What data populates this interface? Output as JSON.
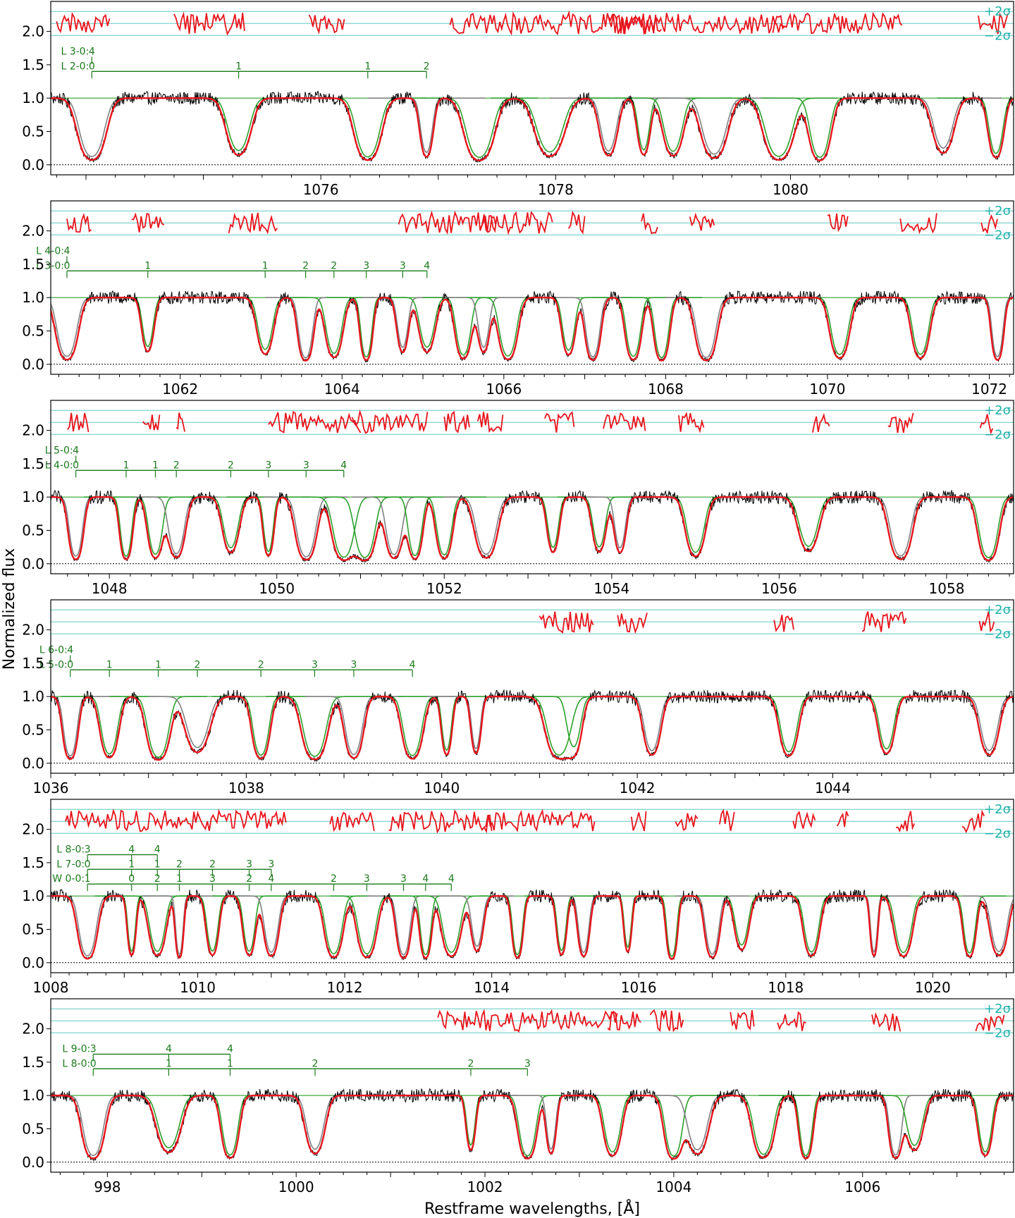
{
  "figure": {
    "ylabel": "Normalized flux",
    "xlabel": "Restframe wavelengths, [Å]",
    "sigma_plus": "+2σ",
    "sigma_minus": "−2σ"
  },
  "colors": {
    "data": "#000000",
    "model": "#e8141c",
    "residuals": "#e8141c",
    "sigma_lines": "#5fc9c4",
    "component_green": "#2ca02c",
    "component_gray": "#808080",
    "line_marker": "#1a7a1a"
  },
  "chart_data": [
    {
      "type": "line",
      "panel": 1,
      "xlim": [
        1073.7,
        1081.9
      ],
      "ylim": [
        -0.15,
        2.45
      ],
      "x_ticks": [
        1076,
        1078,
        1080
      ],
      "y_ticks": [
        0.0,
        0.5,
        1.0,
        1.5,
        2.0
      ],
      "absorption_lines": [
        1074.05,
        1075.3,
        1076.4,
        1076.9,
        1077.35,
        1077.95,
        1078.45,
        1078.75,
        1079.0,
        1079.35,
        1079.9,
        1080.25,
        1081.3,
        1081.75
      ],
      "residual_segments": [
        [
          1073.75,
          1074.2
        ],
        [
          1074.75,
          1075.35
        ],
        [
          1075.9,
          1076.2
        ],
        [
          1077.1,
          1077.9
        ],
        [
          1077.9,
          1078.9
        ],
        [
          1078.45,
          1079.95
        ],
        [
          1079.85,
          1080.95
        ],
        [
          1081.6,
          1081.85
        ]
      ],
      "line_series": [
        {
          "label": "L 3-0:",
          "markers": [
            "4"
          ]
        },
        {
          "label": "L 2-0:",
          "markers": [
            "0",
            "1",
            "1",
            "2"
          ]
        }
      ]
    },
    {
      "type": "line",
      "panel": 2,
      "xlim": [
        1060.4,
        1072.3
      ],
      "ylim": [
        -0.15,
        2.45
      ],
      "x_ticks": [
        1062,
        1064,
        1066,
        1068,
        1070,
        1072
      ],
      "y_ticks": [
        0.0,
        0.5,
        1.0,
        1.5,
        2.0
      ],
      "absorption_lines": [
        1060.6,
        1061.6,
        1063.05,
        1063.55,
        1063.9,
        1064.3,
        1064.75,
        1065.05,
        1065.5,
        1065.75,
        1066.05,
        1066.8,
        1067.1,
        1067.6,
        1067.95,
        1068.5,
        1070.15,
        1071.15,
        1072.1
      ],
      "residual_segments": [
        [
          1060.6,
          1060.9
        ],
        [
          1061.4,
          1061.8
        ],
        [
          1062.6,
          1063.2
        ],
        [
          1064.7,
          1065.9
        ],
        [
          1065.7,
          1066.6
        ],
        [
          1066.8,
          1067.0
        ],
        [
          1067.7,
          1067.9
        ],
        [
          1068.3,
          1068.6
        ],
        [
          1070.0,
          1070.25
        ],
        [
          1070.9,
          1071.35
        ],
        [
          1071.9,
          1072.1
        ]
      ],
      "line_series": [
        {
          "label": "L 4-0:",
          "markers": [
            "4"
          ]
        },
        {
          "label": "L 3-0:",
          "markers": [
            "0",
            "1",
            "1",
            "2",
            "2",
            "3",
            "3",
            "4"
          ]
        }
      ]
    },
    {
      "type": "line",
      "panel": 3,
      "xlim": [
        1047.3,
        1058.8
      ],
      "ylim": [
        -0.15,
        2.45
      ],
      "x_ticks": [
        1048,
        1050,
        1052,
        1054,
        1056,
        1058
      ],
      "y_ticks": [
        0.0,
        0.5,
        1.0,
        1.5,
        2.0
      ],
      "absorption_lines": [
        1047.6,
        1048.2,
        1048.55,
        1048.8,
        1049.45,
        1049.9,
        1050.35,
        1050.8,
        1051.05,
        1051.4,
        1051.65,
        1052.0,
        1052.5,
        1053.3,
        1053.85,
        1054.1,
        1055.0,
        1056.35,
        1057.45,
        1058.5
      ],
      "residual_segments": [
        [
          1047.5,
          1047.75
        ],
        [
          1048.4,
          1048.6
        ],
        [
          1048.8,
          1048.9
        ],
        [
          1049.9,
          1051.0
        ],
        [
          1050.9,
          1051.8
        ],
        [
          1052.0,
          1052.3
        ],
        [
          1052.4,
          1052.7
        ],
        [
          1053.2,
          1053.55
        ],
        [
          1053.9,
          1054.4
        ],
        [
          1054.8,
          1055.1
        ],
        [
          1056.4,
          1056.6
        ],
        [
          1057.3,
          1057.6
        ],
        [
          1058.4,
          1058.55
        ]
      ],
      "line_series": [
        {
          "label": "L 5-0:",
          "markers": [
            "4"
          ]
        },
        {
          "label": "L 4-0:",
          "markers": [
            "0",
            "1",
            "1",
            "2",
            "2",
            "3",
            "3",
            "4"
          ]
        }
      ]
    },
    {
      "type": "line",
      "panel": 4,
      "xlim": [
        1036.0,
        1045.85
      ],
      "ylim": [
        -0.15,
        2.45
      ],
      "x_ticks": [
        1036,
        1038,
        1040,
        1042,
        1044
      ],
      "y_ticks": [
        0.0,
        0.5,
        1.0,
        1.5,
        2.0
      ],
      "absorption_lines": [
        1036.2,
        1036.6,
        1037.1,
        1037.5,
        1038.15,
        1038.7,
        1039.1,
        1039.7,
        1040.05,
        1040.35,
        1041.2,
        1041.35,
        1042.15,
        1043.55,
        1044.55,
        1045.6
      ],
      "residual_segments": [
        [
          1041.0,
          1041.55
        ],
        [
          1041.8,
          1042.1
        ],
        [
          1043.4,
          1043.6
        ],
        [
          1044.3,
          1044.75
        ],
        [
          1045.5,
          1045.65
        ]
      ],
      "line_series": [
        {
          "label": "L 6-0:",
          "markers": [
            "4"
          ]
        },
        {
          "label": "L 5-0:",
          "markers": [
            "0",
            "1",
            "1",
            "2",
            "2",
            "3",
            "3",
            "4"
          ]
        }
      ]
    },
    {
      "type": "line",
      "panel": 5,
      "xlim": [
        1008.0,
        1021.1
      ],
      "ylim": [
        -0.15,
        2.45
      ],
      "x_ticks": [
        1008,
        1010,
        1012,
        1014,
        1016,
        1018,
        1020
      ],
      "y_ticks": [
        0.0,
        0.5,
        1.0,
        1.5,
        2.0
      ],
      "absorption_lines": [
        1008.5,
        1009.1,
        1009.45,
        1009.75,
        1010.2,
        1010.7,
        1011.0,
        1011.85,
        1012.3,
        1012.8,
        1013.1,
        1013.45,
        1013.8,
        1014.35,
        1014.95,
        1015.25,
        1015.85,
        1016.45,
        1017.0,
        1017.4,
        1018.35,
        1019.2,
        1019.6,
        1020.5,
        1020.9
      ],
      "residual_segments": [
        [
          1008.2,
          1011.2
        ],
        [
          1011.8,
          1012.4
        ],
        [
          1012.6,
          1014.0
        ],
        [
          1013.9,
          1015.4
        ],
        [
          1015.9,
          1016.1
        ],
        [
          1016.5,
          1016.8
        ],
        [
          1017.1,
          1017.3
        ],
        [
          1018.1,
          1018.4
        ],
        [
          1018.7,
          1018.85
        ],
        [
          1019.5,
          1019.75
        ],
        [
          1020.4,
          1020.7
        ]
      ],
      "line_series": [
        {
          "label": "L 8-0:",
          "markers": [
            "3",
            "4",
            "4"
          ]
        },
        {
          "label": "L 7-0:",
          "markers": [
            "0",
            "1",
            "1",
            "2",
            "2",
            "3",
            "3"
          ]
        },
        {
          "label": "W 0-0:",
          "markers": [
            "1",
            "0",
            "2",
            "1",
            "3",
            "2",
            "4",
            "2",
            "3",
            "3",
            "4",
            "4"
          ]
        }
      ]
    },
    {
      "type": "line",
      "panel": 6,
      "xlim": [
        997.4,
        1007.6
      ],
      "ylim": [
        -0.15,
        2.45
      ],
      "x_ticks": [
        998,
        1000,
        1002,
        1004,
        1006
      ],
      "y_ticks": [
        0.0,
        0.5,
        1.0,
        1.5,
        2.0
      ],
      "absorption_lines": [
        997.85,
        998.65,
        999.3,
        1000.2,
        1001.85,
        1002.45,
        1002.7,
        1003.35,
        1004.0,
        1004.25,
        1004.95,
        1005.4,
        1006.35,
        1006.55,
        1007.3
      ],
      "residual_segments": [
        [
          1001.5,
          1003.4
        ],
        [
          1003.3,
          1003.65
        ],
        [
          1003.75,
          1004.1
        ],
        [
          1004.6,
          1004.85
        ],
        [
          1005.1,
          1005.4
        ],
        [
          1006.1,
          1006.4
        ],
        [
          1007.2,
          1007.5
        ]
      ],
      "line_series": [
        {
          "label": "L 9-0:",
          "markers": [
            "3",
            "4",
            "4"
          ]
        },
        {
          "label": "L 8-0:",
          "markers": [
            "0",
            "1",
            "1",
            "2",
            "2",
            "3"
          ]
        }
      ]
    }
  ]
}
